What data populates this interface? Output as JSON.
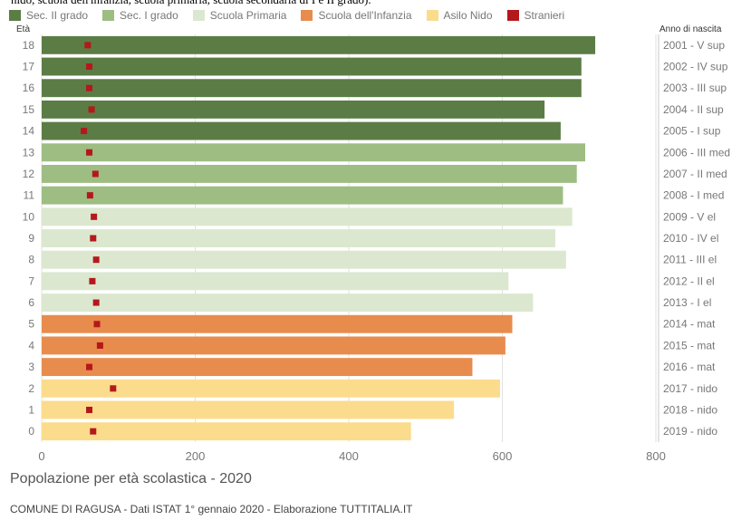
{
  "caption_text": "nido, scuola dell'infanzia, scuola primaria, scuola secondaria di I e II grado).",
  "colors": {
    "sec2": "#5b7d45",
    "sec1": "#9dbd83",
    "primaria": "#dbe8cf",
    "infanzia": "#e88c4d",
    "nido": "#fbdc8d",
    "stranieri": "#b5181c"
  },
  "chart_data": {
    "type": "bar",
    "orientation": "horizontal",
    "title": "Popolazione per età scolastica - 2020",
    "source": "COMUNE DI RAGUSA - Dati ISTAT 1° gennaio 2020 - Elaborazione TUTTITALIA.IT",
    "ylabel_left": "Età",
    "ylabel_right": "Anno di nascita",
    "xlim": [
      0,
      800
    ],
    "xticks": [
      0,
      200,
      400,
      600,
      800
    ],
    "grid": "vertical",
    "legend": [
      {
        "label": "Sec. II grado",
        "key": "sec2"
      },
      {
        "label": "Sec. I grado",
        "key": "sec1"
      },
      {
        "label": "Scuola Primaria",
        "key": "primaria"
      },
      {
        "label": "Scuola dell'Infanzia",
        "key": "infanzia"
      },
      {
        "label": "Asilo Nido",
        "key": "nido"
      },
      {
        "label": "Stranieri",
        "key": "stranieri"
      }
    ],
    "rows": [
      {
        "age": "18",
        "birth": "2001 - V sup",
        "value": 721,
        "stranieri": 60,
        "group": "sec2"
      },
      {
        "age": "17",
        "birth": "2002 - IV sup",
        "value": 703,
        "stranieri": 62,
        "group": "sec2"
      },
      {
        "age": "16",
        "birth": "2003 - III sup",
        "value": 703,
        "stranieri": 62,
        "group": "sec2"
      },
      {
        "age": "15",
        "birth": "2004 - II sup",
        "value": 655,
        "stranieri": 65,
        "group": "sec2"
      },
      {
        "age": "14",
        "birth": "2005 - I sup",
        "value": 676,
        "stranieri": 55,
        "group": "sec2"
      },
      {
        "age": "13",
        "birth": "2006 - III med",
        "value": 708,
        "stranieri": 62,
        "group": "sec1"
      },
      {
        "age": "12",
        "birth": "2007 - II med",
        "value": 697,
        "stranieri": 70,
        "group": "sec1"
      },
      {
        "age": "11",
        "birth": "2008 - I med",
        "value": 679,
        "stranieri": 63,
        "group": "sec1"
      },
      {
        "age": "10",
        "birth": "2009 - V el",
        "value": 691,
        "stranieri": 68,
        "group": "primaria"
      },
      {
        "age": "9",
        "birth": "2010 - IV el",
        "value": 669,
        "stranieri": 67,
        "group": "primaria"
      },
      {
        "age": "8",
        "birth": "2011 - III el",
        "value": 683,
        "stranieri": 71,
        "group": "primaria"
      },
      {
        "age": "7",
        "birth": "2012 - II el",
        "value": 608,
        "stranieri": 66,
        "group": "primaria"
      },
      {
        "age": "6",
        "birth": "2013 - I el",
        "value": 640,
        "stranieri": 71,
        "group": "primaria"
      },
      {
        "age": "5",
        "birth": "2014 - mat",
        "value": 613,
        "stranieri": 72,
        "group": "infanzia"
      },
      {
        "age": "4",
        "birth": "2015 - mat",
        "value": 604,
        "stranieri": 76,
        "group": "infanzia"
      },
      {
        "age": "3",
        "birth": "2016 - mat",
        "value": 561,
        "stranieri": 62,
        "group": "infanzia"
      },
      {
        "age": "2",
        "birth": "2017 - nido",
        "value": 597,
        "stranieri": 93,
        "group": "nido"
      },
      {
        "age": "1",
        "birth": "2018 - nido",
        "value": 537,
        "stranieri": 62,
        "group": "nido"
      },
      {
        "age": "0",
        "birth": "2019 - nido",
        "value": 481,
        "stranieri": 67,
        "group": "nido"
      }
    ]
  }
}
